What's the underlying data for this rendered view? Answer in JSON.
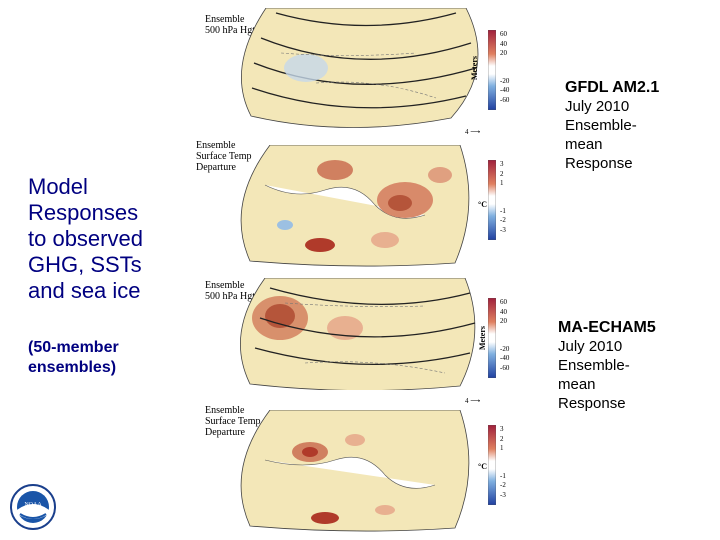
{
  "left_title": {
    "main_lines": [
      "Model",
      "Responses",
      "to observed",
      "GHG, SSTs",
      "and sea ice"
    ],
    "sub_lines": [
      "(50-member",
      "ensembles)"
    ]
  },
  "models": [
    {
      "name": "GFDL AM2.1",
      "lines": [
        "July 2010",
        "Ensemble-",
        "mean",
        "Response"
      ]
    },
    {
      "name": "MA-ECHAM5",
      "lines": [
        "July 2010",
        "Ensemble-",
        "mean",
        "Response"
      ]
    }
  ],
  "panels": {
    "hgt_title_lines": [
      "Ensemble",
      "500 hPa Hgt/Wind"
    ],
    "temp_title_lines": [
      "Ensemble",
      "Surface Temp",
      "Departure"
    ],
    "hgt_units": "Meters",
    "temp_units": "°C",
    "hgt_scale_ticks": [
      "60",
      "40",
      "20",
      "-20",
      "-40",
      "-60"
    ],
    "temp_scale_ticks": [
      "3",
      "2",
      "1",
      "-1",
      "-2",
      "-3"
    ],
    "vector_ref": "4"
  },
  "colors": {
    "title_text": "#000080",
    "warm": "#c8643c",
    "cool": "#6ea0d2",
    "land": "#f3e7b8"
  },
  "icons": [
    "noaa-logo"
  ]
}
